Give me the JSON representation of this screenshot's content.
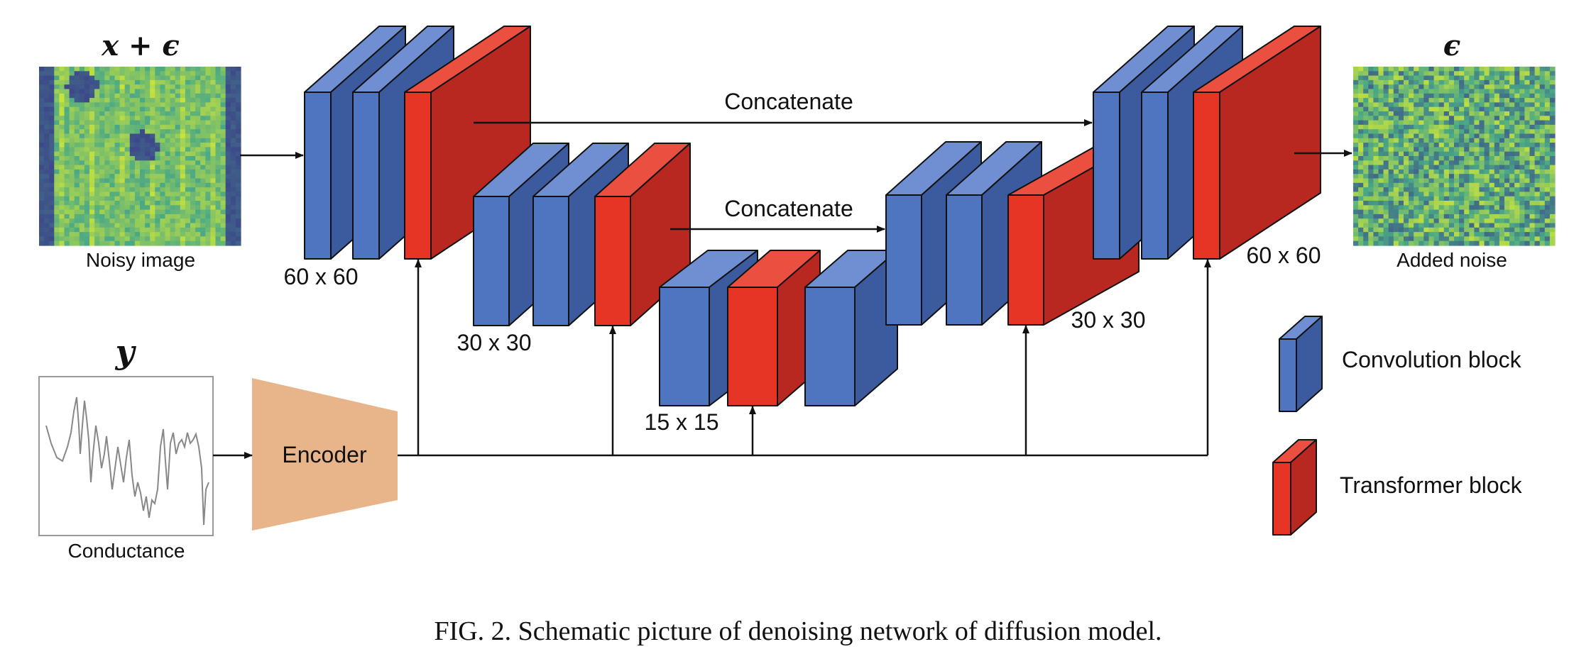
{
  "input": {
    "math_label": "x + ϵ",
    "caption": "Noisy image"
  },
  "output": {
    "math_label": "ϵ",
    "caption": "Added noise"
  },
  "condition": {
    "math_label": "y",
    "caption": "Conductance"
  },
  "encoder": {
    "label": "Encoder",
    "color": "#e8b48a"
  },
  "resolutions": {
    "enc1": "60 x 60",
    "enc2": "30 x 30",
    "bottleneck": "15 x 15",
    "dec2": "30 x 30",
    "dec1": "60 x 60"
  },
  "skips": {
    "top": "Concatenate",
    "inner": "Concatenate"
  },
  "legend": {
    "conv": "Convolution block",
    "transformer": "Transformer block"
  },
  "colors": {
    "conv_front": "#4f74c0",
    "conv_top": "#6f8fd2",
    "conv_side": "#3c5a9e",
    "trans_front": "#e63524",
    "trans_top": "#ea4f3f",
    "trans_side": "#b82820",
    "noise_dark": "#3b3d8a",
    "noise_mid": "#4aa886",
    "noise_light": "#c9e33c"
  },
  "figure_caption": "FIG. 2.  Schematic picture of denoising network of diffusion model."
}
